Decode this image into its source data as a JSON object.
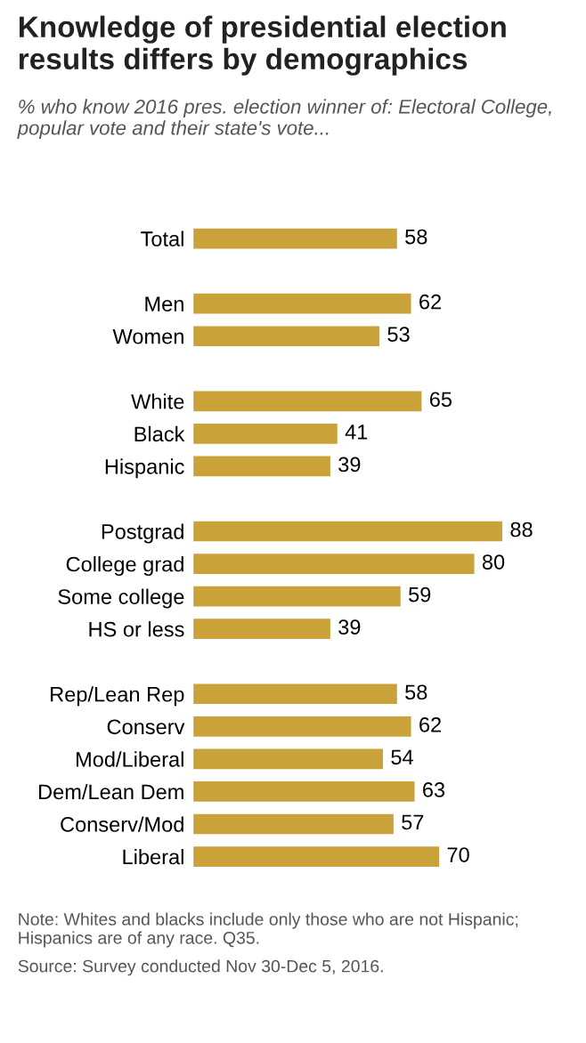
{
  "chart_data": {
    "type": "bar",
    "orientation": "horizontal",
    "title": "Knowledge of presidential election results differs by demographics",
    "subtitle": "% who know 2016 pres. election winner of: Electoral College, popular vote and their state's vote...",
    "categories": [
      "Total",
      null,
      "Men",
      "Women",
      null,
      "White",
      "Black",
      "Hispanic",
      null,
      "Postgrad",
      "College grad",
      "Some college",
      "HS or less",
      null,
      "Rep/Lean Rep",
      "Conserv",
      "Mod/Liberal",
      "Dem/Lean Dem",
      "Conserv/Mod",
      "Liberal"
    ],
    "values": [
      58,
      null,
      62,
      53,
      null,
      65,
      41,
      39,
      null,
      88,
      80,
      59,
      39,
      null,
      58,
      62,
      54,
      63,
      57,
      70
    ],
    "color": "#c9a23a",
    "data_labels": true,
    "annotations": [
      "Note: Whites and blacks include only those who are not Hispanic; Hispanics are of any race. Q35.",
      "Source: Survey conducted Nov 30-Dec 5, 2016."
    ]
  }
}
